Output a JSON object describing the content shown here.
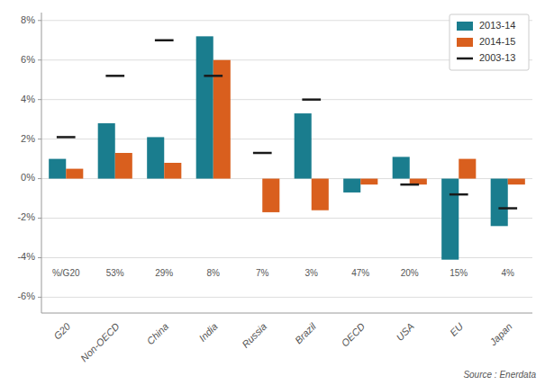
{
  "chart_data": {
    "type": "bar",
    "categories": [
      "G20",
      "Non-OECD",
      "China",
      "India",
      "Russia",
      "Brazil",
      "OECD",
      "USA",
      "EU",
      "Japan"
    ],
    "series": [
      {
        "name": "2013-14",
        "type": "bar",
        "color": "#1a7d8e",
        "values": [
          1.0,
          2.8,
          2.1,
          7.2,
          0.0,
          3.3,
          -0.7,
          1.1,
          -4.1,
          -2.4
        ]
      },
      {
        "name": "2014-15",
        "type": "bar",
        "color": "#d95f1e",
        "values": [
          0.5,
          1.3,
          0.8,
          6.0,
          -1.7,
          -1.6,
          -0.3,
          -0.3,
          1.0,
          -0.3
        ]
      },
      {
        "name": "2003-13",
        "type": "scatter",
        "marker": "dash",
        "color": "#1a1a1a",
        "values": [
          2.1,
          5.2,
          7.0,
          5.2,
          1.3,
          4.0,
          null,
          -0.3,
          -0.8,
          -1.5
        ]
      }
    ],
    "ylim": [
      -6.8,
      8.4
    ],
    "yticks": [
      {
        "value": -6,
        "label": "-6%"
      },
      {
        "value": -4,
        "label": "-4%"
      },
      {
        "value": -2,
        "label": "-2%"
      },
      {
        "value": 0,
        "label": "0%"
      },
      {
        "value": 2,
        "label": "2%"
      },
      {
        "value": 4,
        "label": "4%"
      },
      {
        "value": 6,
        "label": "6%"
      },
      {
        "value": 8,
        "label": "8%"
      }
    ],
    "annotations": [
      {
        "text": "%/G20",
        "x": "G20",
        "y": -4.8
      },
      {
        "text": "53%",
        "x": "Non-OECD",
        "y": -4.8
      },
      {
        "text": "29%",
        "x": "China",
        "y": -4.8
      },
      {
        "text": "8%",
        "x": "India",
        "y": -4.8
      },
      {
        "text": "7%",
        "x": "Russia",
        "y": -4.8
      },
      {
        "text": "3%",
        "x": "Brazil",
        "y": -4.8
      },
      {
        "text": "47%",
        "x": "OECD",
        "y": -4.8
      },
      {
        "text": "20%",
        "x": "USA",
        "y": -4.8
      },
      {
        "text": "15%",
        "x": "EU",
        "y": -4.8
      },
      {
        "text": "4%",
        "x": "Japan",
        "y": -4.8
      }
    ],
    "source": "Source : Enerdata",
    "grid": true,
    "legend": "upper right"
  }
}
